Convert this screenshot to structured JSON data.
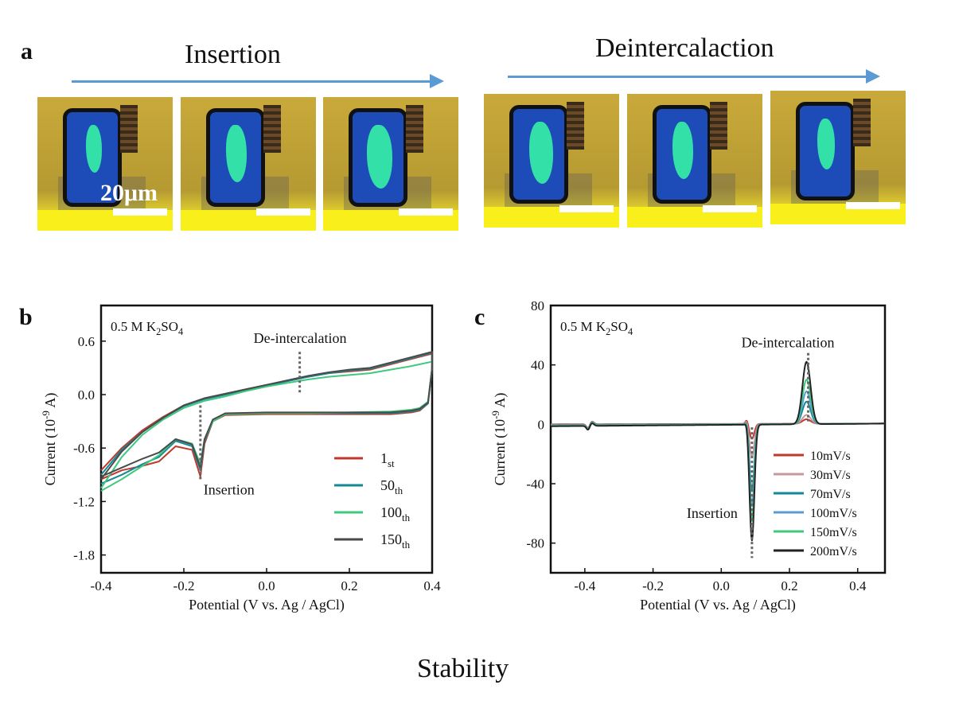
{
  "panel_a": {
    "label": "a",
    "insertion_title": "Insertion",
    "deintercalation_title": "Deintercalaction",
    "scale_bar_label": "20μm",
    "colors": {
      "arrow": "#5b9bd5",
      "substrate": "#c9a93a",
      "flake": "#1d4bb8",
      "glow": "#33e0a8"
    }
  },
  "caption": "Stability",
  "chart_data": [
    {
      "type": "line",
      "panel_label": "b",
      "electrolyte": "0.5 M K",
      "electrolyte_sub": "2",
      "electrolyte_tail": "SO",
      "electrolyte_sub2": "4",
      "xlabel": "Potential (V vs. Ag / AgCl)",
      "ylabel": "Current (10",
      "ylabel_exp": "-9",
      "ylabel_tail": " A)",
      "xlim": [
        -0.4,
        0.4
      ],
      "ylim": [
        -2.0,
        1.0
      ],
      "xticks": [
        -0.4,
        -0.2,
        0.0,
        0.2,
        0.4
      ],
      "xtick_labels": [
        "-0.4",
        "-0.2",
        "0.0",
        "0.2",
        "0.4"
      ],
      "yticks": [
        0.6,
        0.0,
        -0.6,
        -1.2,
        -1.8
      ],
      "ytick_labels": [
        "0.6",
        "0.0",
        "-0.6",
        "-1.2",
        "-1.8"
      ],
      "annotations": {
        "upper": "De-intercalation",
        "lower": "Insertion"
      },
      "legend_position": "right",
      "series": [
        {
          "name": "1",
          "name_sub": "st",
          "color": "#c0392b",
          "upper": {
            "x": [
              -0.4,
              -0.35,
              -0.3,
              -0.25,
              -0.2,
              -0.15,
              -0.1,
              -0.05,
              0.0,
              0.05,
              0.1,
              0.15,
              0.2,
              0.25,
              0.3,
              0.35,
              0.4
            ],
            "y": [
              -0.85,
              -0.6,
              -0.4,
              -0.25,
              -0.12,
              -0.05,
              0.0,
              0.05,
              0.1,
              0.15,
              0.2,
              0.24,
              0.26,
              0.28,
              0.34,
              0.4,
              0.46
            ]
          },
          "lower": {
            "x": [
              0.4,
              0.39,
              0.37,
              0.35,
              0.3,
              0.2,
              0.1,
              0.0,
              -0.1,
              -0.13,
              -0.15,
              -0.16,
              -0.18,
              -0.22,
              -0.26,
              -0.3,
              -0.35,
              -0.4
            ],
            "y": [
              0.3,
              -0.1,
              -0.18,
              -0.2,
              -0.22,
              -0.22,
              -0.22,
              -0.22,
              -0.23,
              -0.3,
              -0.55,
              -0.92,
              -0.62,
              -0.58,
              -0.75,
              -0.8,
              -0.85,
              -0.95
            ]
          }
        },
        {
          "name": "50",
          "name_sub": "th",
          "color": "#168a94",
          "upper": {
            "x": [
              -0.4,
              -0.35,
              -0.3,
              -0.25,
              -0.2,
              -0.15,
              -0.1,
              -0.05,
              0.0,
              0.05,
              0.1,
              0.15,
              0.2,
              0.25,
              0.3,
              0.35,
              0.4
            ],
            "y": [
              -0.9,
              -0.62,
              -0.42,
              -0.26,
              -0.13,
              -0.05,
              0.0,
              0.05,
              0.1,
              0.15,
              0.2,
              0.24,
              0.27,
              0.29,
              0.35,
              0.41,
              0.47
            ]
          },
          "lower": {
            "x": [
              0.4,
              0.39,
              0.37,
              0.35,
              0.3,
              0.2,
              0.1,
              0.0,
              -0.1,
              -0.13,
              -0.15,
              -0.16,
              -0.18,
              -0.22,
              -0.26,
              -0.3,
              -0.35,
              -0.4
            ],
            "y": [
              0.3,
              -0.1,
              -0.17,
              -0.19,
              -0.21,
              -0.21,
              -0.21,
              -0.21,
              -0.22,
              -0.3,
              -0.52,
              -0.85,
              -0.58,
              -0.52,
              -0.7,
              -0.78,
              -0.9,
              -1.0
            ]
          }
        },
        {
          "name": "100",
          "name_sub": "th",
          "color": "#3fc87e",
          "upper": {
            "x": [
              -0.4,
              -0.35,
              -0.3,
              -0.25,
              -0.2,
              -0.15,
              -0.1,
              -0.05,
              0.0,
              0.05,
              0.1,
              0.15,
              0.2,
              0.25,
              0.3,
              0.35,
              0.4
            ],
            "y": [
              -1.05,
              -0.7,
              -0.45,
              -0.28,
              -0.15,
              -0.07,
              -0.02,
              0.04,
              0.09,
              0.13,
              0.17,
              0.2,
              0.22,
              0.24,
              0.28,
              0.32,
              0.37
            ]
          },
          "lower": {
            "x": [
              0.4,
              0.39,
              0.37,
              0.35,
              0.3,
              0.2,
              0.1,
              0.0,
              -0.1,
              -0.13,
              -0.15,
              -0.16,
              -0.18,
              -0.22,
              -0.26,
              -0.3,
              -0.35,
              -0.4
            ],
            "y": [
              0.3,
              -0.08,
              -0.15,
              -0.17,
              -0.19,
              -0.2,
              -0.21,
              -0.21,
              -0.22,
              -0.3,
              -0.5,
              -0.78,
              -0.55,
              -0.5,
              -0.68,
              -0.8,
              -0.95,
              -1.08
            ]
          }
        },
        {
          "name": "150",
          "name_sub": "th",
          "color": "#4a4a4a",
          "upper": {
            "x": [
              -0.4,
              -0.35,
              -0.3,
              -0.25,
              -0.2,
              -0.15,
              -0.1,
              -0.05,
              0.0,
              0.05,
              0.1,
              0.15,
              0.2,
              0.25,
              0.3,
              0.35,
              0.4
            ],
            "y": [
              -0.95,
              -0.64,
              -0.42,
              -0.26,
              -0.12,
              -0.04,
              0.01,
              0.06,
              0.11,
              0.16,
              0.21,
              0.25,
              0.28,
              0.3,
              0.36,
              0.42,
              0.48
            ]
          },
          "lower": {
            "x": [
              0.4,
              0.39,
              0.37,
              0.35,
              0.3,
              0.2,
              0.1,
              0.0,
              -0.1,
              -0.13,
              -0.15,
              -0.16,
              -0.18,
              -0.22,
              -0.26,
              -0.3,
              -0.35,
              -0.4
            ],
            "y": [
              0.3,
              -0.09,
              -0.16,
              -0.18,
              -0.2,
              -0.2,
              -0.2,
              -0.2,
              -0.21,
              -0.28,
              -0.5,
              -0.82,
              -0.56,
              -0.5,
              -0.65,
              -0.72,
              -0.82,
              -0.92
            ]
          }
        }
      ]
    },
    {
      "type": "line",
      "panel_label": "c",
      "electrolyte": "0.5 M K",
      "electrolyte_sub": "2",
      "electrolyte_tail": "SO",
      "electrolyte_sub2": "4",
      "xlabel": "Potential (V vs. Ag / AgCl)",
      "ylabel": "Current (10",
      "ylabel_exp": "-9",
      "ylabel_tail": " A)",
      "xlim": [
        -0.5,
        0.48
      ],
      "ylim": [
        -100,
        80
      ],
      "xticks": [
        -0.4,
        -0.2,
        0.0,
        0.2,
        0.4
      ],
      "xtick_labels": [
        "-0.4",
        "-0.2",
        "0.0",
        "0.2",
        "0.4"
      ],
      "yticks": [
        80,
        40,
        0,
        -40,
        -80
      ],
      "ytick_labels": [
        "80",
        "40",
        "0",
        "-40",
        "-80"
      ],
      "annotations": {
        "upper": "De-intercalation",
        "lower": "Insertion"
      },
      "legend_position": "right",
      "series": [
        {
          "name": "10mV/s",
          "color": "#c0392b",
          "insert_peak": -10,
          "deint_peak": 3,
          "baseline": -0.5
        },
        {
          "name": "30mV/s",
          "color": "#c49a9a",
          "insert_peak": -22,
          "deint_peak": 6,
          "baseline": -0.8
        },
        {
          "name": "70mV/s",
          "color": "#168a94",
          "insert_peak": -45,
          "deint_peak": 15,
          "baseline": -1.0
        },
        {
          "name": "100mV/s",
          "color": "#5b9bd5",
          "insert_peak": -55,
          "deint_peak": 22,
          "baseline": -1.2
        },
        {
          "name": "150mV/s",
          "color": "#3fc87e",
          "insert_peak": -65,
          "deint_peak": 30,
          "baseline": -1.5
        },
        {
          "name": "200mV/s",
          "color": "#222222",
          "insert_peak": -78,
          "deint_peak": 42,
          "baseline": -1.8
        }
      ],
      "insert_x": 0.09,
      "deint_x": 0.25
    }
  ]
}
